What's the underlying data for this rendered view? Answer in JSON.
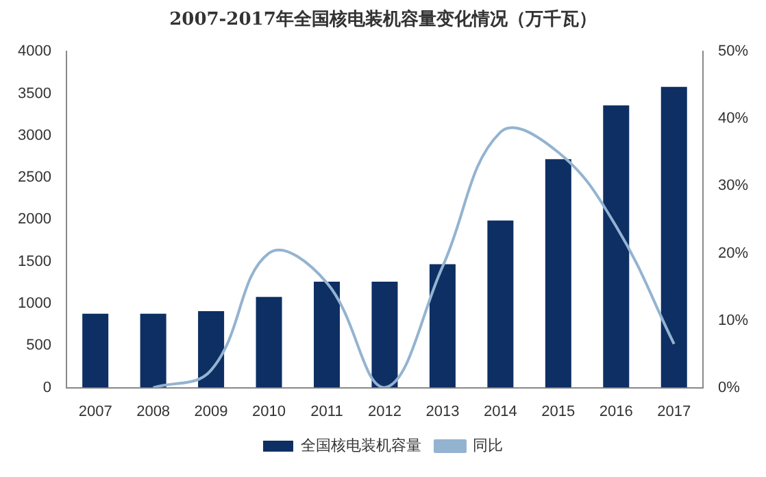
{
  "chart_data": {
    "type": "bar",
    "title": "2007-2017年全国核电装机容量变化情况（万千瓦）",
    "categories": [
      "2007",
      "2008",
      "2009",
      "2010",
      "2011",
      "2012",
      "2013",
      "2014",
      "2015",
      "2016",
      "2017"
    ],
    "series": [
      {
        "name": "全国核电装机容量",
        "color": "#0e2f63",
        "values": [
          880,
          880,
          910,
          1080,
          1260,
          1260,
          1470,
          1990,
          2720,
          3360,
          3580
        ]
      },
      {
        "name": "同比",
        "type": "line",
        "axis": "y2",
        "color": "#94b3d1",
        "marker": "none",
        "values": [
          null,
          0,
          2.6,
          20,
          15.6,
          0,
          18,
          38,
          35,
          24,
          6.5
        ]
      }
    ],
    "ylim": [
      0,
      4000
    ],
    "yticks": [
      0,
      500,
      1000,
      1500,
      2000,
      2500,
      3000,
      3500,
      4000
    ],
    "y2lim": [
      0,
      50
    ],
    "y2ticks": [
      {
        "value": 0,
        "label": "0%"
      },
      {
        "value": 10,
        "label": "10%"
      },
      {
        "value": 20,
        "label": "20%"
      },
      {
        "value": 30,
        "label": "30%"
      },
      {
        "value": 40,
        "label": "40%"
      },
      {
        "value": 50,
        "label": "50%"
      }
    ],
    "grid": false,
    "legend": "bottom"
  }
}
